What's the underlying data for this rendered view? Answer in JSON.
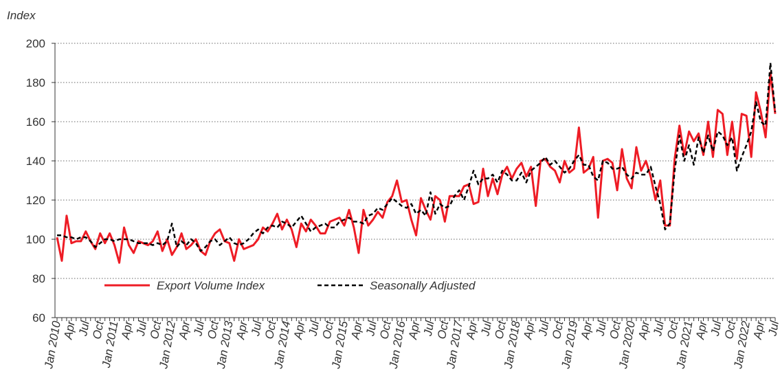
{
  "chart_data": {
    "type": "line",
    "ylabel": "Index",
    "categories": [
      "Jan 2010",
      null,
      null,
      "Apr",
      null,
      null,
      "Jul",
      null,
      null,
      "Oct",
      null,
      null,
      "Jan 2011",
      null,
      null,
      "Apr",
      null,
      null,
      "Jul",
      null,
      null,
      "Oct",
      null,
      null,
      "Jan 2012",
      null,
      null,
      "Apr",
      null,
      null,
      "Jul",
      null,
      null,
      "Oct",
      null,
      null,
      "Jan 2013",
      null,
      null,
      "Apr",
      null,
      null,
      "Jul",
      null,
      null,
      "Oct",
      null,
      null,
      "Jan 2014",
      null,
      null,
      "Apr",
      null,
      null,
      "Jul",
      null,
      null,
      "Oct",
      null,
      null,
      "Jan 2015",
      null,
      null,
      "Apr",
      null,
      null,
      "Jul",
      null,
      null,
      "Oct",
      null,
      null,
      "Jan 2016",
      null,
      null,
      "Apr",
      null,
      null,
      "Jul",
      null,
      null,
      "Oct",
      null,
      null,
      "Jan 2017",
      null,
      null,
      "Apr",
      null,
      null,
      "Jul",
      null,
      null,
      "Oct",
      null,
      null,
      "Jan 2018",
      null,
      null,
      "Apr",
      null,
      null,
      "Jul",
      null,
      null,
      "Oct",
      null,
      null,
      "Jan 2019",
      null,
      null,
      "Apr",
      null,
      null,
      "Jul",
      null,
      null,
      "Oct",
      null,
      null,
      "Jan 2020",
      null,
      null,
      "Apr",
      null,
      null,
      "Jul",
      null,
      null,
      "Oct",
      null,
      null,
      "Jan 2021",
      null,
      null,
      "Apr",
      null,
      null,
      "Jul",
      null,
      null,
      "Oct",
      null,
      null,
      "Jan 2022",
      null,
      null,
      "Apr",
      null,
      null,
      "Jul"
    ],
    "series": [
      {
        "name": "Export Volume Index",
        "color": "#ee1c25",
        "dash": false,
        "values": [
          101,
          89,
          112,
          98,
          99,
          99,
          104,
          99,
          95,
          103,
          98,
          103,
          97,
          88,
          106,
          97,
          93,
          99,
          98,
          97,
          99,
          104,
          94,
          100,
          92,
          96,
          103,
          95,
          97,
          100,
          94,
          92,
          99,
          103,
          105,
          99,
          98,
          89,
          100,
          95,
          96,
          97,
          100,
          106,
          104,
          108,
          113,
          105,
          110,
          105,
          96,
          108,
          104,
          110,
          107,
          103,
          103,
          109,
          110,
          111,
          107,
          115,
          106,
          93,
          115,
          107,
          110,
          114,
          111,
          119,
          122,
          130,
          119,
          120,
          110,
          102,
          121,
          115,
          110,
          122,
          120,
          109,
          122,
          122,
          122,
          127,
          128,
          118,
          119,
          136,
          122,
          131,
          123,
          133,
          137,
          131,
          136,
          139,
          132,
          137,
          117,
          140,
          141,
          137,
          135,
          129,
          140,
          134,
          136,
          157,
          134,
          136,
          142,
          111,
          140,
          141,
          139,
          125,
          146,
          131,
          126,
          147,
          135,
          140,
          132,
          120,
          130,
          107,
          107,
          141,
          158,
          143,
          155,
          150,
          154,
          143,
          160,
          142,
          166,
          164,
          143,
          160,
          141,
          164,
          163,
          142,
          175,
          165,
          152,
          185,
          164
        ]
      },
      {
        "name": "Seasonally Adjusted",
        "color": "#000000",
        "dash": true,
        "values": [
          102,
          102,
          101,
          101,
          100,
          101,
          101,
          99,
          96,
          98,
          100,
          100,
          99,
          100,
          100,
          100,
          99,
          98,
          98,
          98,
          97,
          98,
          97,
          99,
          108,
          96,
          99,
          97,
          100,
          98,
          94,
          96,
          99,
          100,
          97,
          99,
          101,
          98,
          97,
          98,
          100,
          103,
          105,
          103,
          106,
          107,
          106,
          109,
          108,
          106,
          109,
          112,
          108,
          104,
          106,
          107,
          108,
          106,
          106,
          109,
          110,
          111,
          109,
          109,
          108,
          112,
          113,
          116,
          115,
          118,
          121,
          119,
          117,
          116,
          118,
          113,
          115,
          112,
          124,
          113,
          118,
          116,
          117,
          122,
          125,
          120,
          127,
          135,
          128,
          131,
          131,
          133,
          129,
          135,
          133,
          130,
          130,
          134,
          129,
          135,
          137,
          139,
          142,
          138,
          140,
          137,
          134,
          136,
          140,
          143,
          138,
          138,
          132,
          130,
          140,
          139,
          136,
          136,
          137,
          133,
          131,
          134,
          133,
          133,
          137,
          127,
          118,
          105,
          108,
          135,
          153,
          140,
          148,
          138,
          152,
          144,
          153,
          145,
          155,
          153,
          148,
          152,
          135,
          142,
          148,
          155,
          170,
          160,
          158,
          190,
          165
        ]
      }
    ],
    "ylim": [
      60,
      200
    ],
    "yticks": [
      60,
      80,
      100,
      120,
      140,
      160,
      180,
      200
    ],
    "grid": true,
    "legend": "lower left"
  }
}
